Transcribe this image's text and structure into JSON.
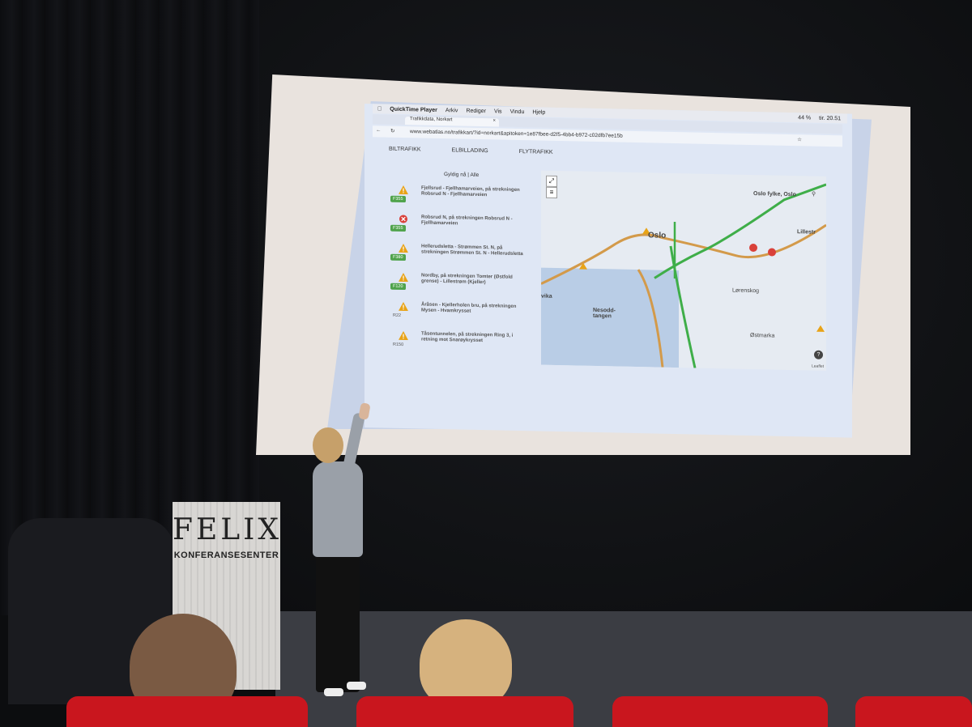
{
  "browser": {
    "menubar": {
      "app_name": "QuickTime Player",
      "items": [
        "Arkiv",
        "Rediger",
        "Vis",
        "Vindu",
        "Hjelp"
      ],
      "status": "44 %",
      "clock": "tir. 20.51"
    },
    "tab_title": "Trafikkdata, Norkart",
    "url": "www.webatlas.no/trafikkart/?id=norkart&apitoken=1e87fbee-d2f5-4bb4-b972-c02dfb7ee15b"
  },
  "app": {
    "tabs": [
      "BILTRAFIKK",
      "ELBILLADING",
      "FLYTRAFIKK"
    ],
    "filter": {
      "active": "Gyldig nå",
      "separator": "|",
      "other": "Alle"
    },
    "incidents": [
      {
        "icon": "warning-icon",
        "road": "F355",
        "text": "Fjellsrud - Fjellhamarveien, på strekningen Robsrud N - Fjellhamarveien"
      },
      {
        "icon": "closed-icon",
        "road": "F355",
        "text": "Robsrud N, på strekningen Robsrud N - Fjellhamarveien"
      },
      {
        "icon": "warning-icon",
        "road": "F380",
        "text": "Hellerudsletta - Strømmen St. N, på strekningen Strømmen St. N - Hellerudsletta"
      },
      {
        "icon": "warning-icon",
        "road": "F120",
        "text": "Nordby, på strekningen Tomter (Østfold grense) - Lillestrøm (Kjeller)"
      },
      {
        "icon": "warning-icon",
        "road": "R22",
        "text": "Åråsen - Kjellerholen bru, på strekningen Mysen - Hvamkrysset"
      },
      {
        "icon": "warning-icon",
        "road": "R150",
        "text": "Tåsentunnelen, på strekningen Ring 3, i retning mot Snarøykrysset"
      }
    ],
    "map": {
      "search_label": "Oslo fylke, Oslo",
      "labels": [
        "Oslo",
        "Lørenskog",
        "Nesodd-tangen",
        "Østmarka",
        "Lillestr",
        "vika"
      ],
      "help": "?",
      "attribution": "Leaflet",
      "colors": {
        "green_road": "#3fae49",
        "orange_road": "#d39a4a",
        "water": "#b9cde6"
      }
    }
  },
  "venue": {
    "logo_name": "FELIX",
    "logo_sub": "KONFERANSESENTER"
  }
}
